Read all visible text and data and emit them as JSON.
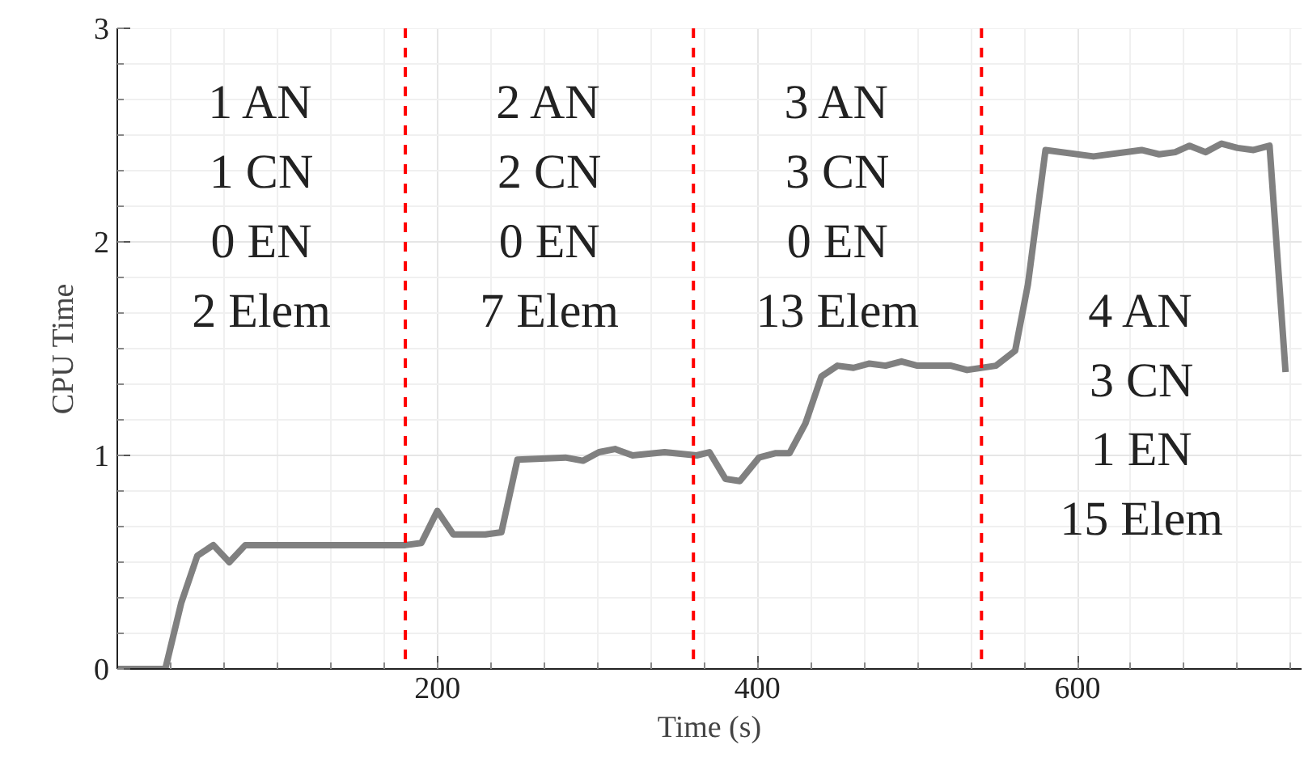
{
  "chart_data": {
    "type": "line",
    "xlabel": "Time (s)",
    "ylabel": "CPU Time",
    "x": [
      0,
      30,
      40,
      50,
      60,
      70,
      80,
      100,
      120,
      140,
      160,
      180,
      190,
      200,
      210,
      230,
      240,
      250,
      280,
      291,
      301,
      311,
      322,
      342,
      362,
      370,
      380,
      389,
      401,
      411,
      420,
      430,
      440,
      450,
      460,
      470,
      480,
      490,
      500,
      521,
      531,
      549,
      561,
      569,
      580,
      610,
      640,
      651,
      661,
      670,
      680,
      690,
      700,
      710,
      720,
      730
    ],
    "series": [
      {
        "color": "#808080",
        "values": [
          0,
          0,
          0.31,
          0.53,
          0.58,
          0.5,
          0.58,
          0.58,
          0.58,
          0.58,
          0.58,
          0.58,
          0.59,
          0.74,
          0.63,
          0.63,
          0.64,
          0.98,
          0.99,
          0.975,
          1.015,
          1.03,
          1.0,
          1.015,
          1.0,
          1.015,
          0.89,
          0.88,
          0.99,
          1.01,
          1.01,
          1.15,
          1.37,
          1.42,
          1.41,
          1.43,
          1.42,
          1.44,
          1.42,
          1.42,
          1.4,
          1.42,
          1.49,
          1.8,
          2.43,
          2.4,
          2.43,
          2.41,
          2.42,
          2.45,
          2.42,
          2.46,
          2.44,
          2.43,
          2.45,
          1.39
        ]
      }
    ],
    "xlim": [
      0,
      740
    ],
    "ylim": [
      0,
      3
    ],
    "xticks": [
      200,
      400,
      600
    ],
    "yticks": [
      0,
      1,
      2,
      3
    ],
    "grid": true,
    "line_style": "solid",
    "marker": "none",
    "ref_lines": [
      {
        "axis": "x",
        "value": 180,
        "color": "#ff0000",
        "line_style": "dashed"
      },
      {
        "axis": "x",
        "value": 360,
        "color": "#ff0000",
        "line_style": "dashed"
      },
      {
        "axis": "x",
        "value": 540,
        "color": "#ff0000",
        "line_style": "dashed"
      }
    ],
    "annotations": [
      "1 AN\n1 CN\n0 EN\n2 Elem",
      "2 AN\n2 CN\n0 EN\n7 Elem",
      "3 AN\n3 CN\n0 EN\n13 Elem",
      "4 AN\n3 CN\n1 EN\n15 Elem"
    ]
  }
}
